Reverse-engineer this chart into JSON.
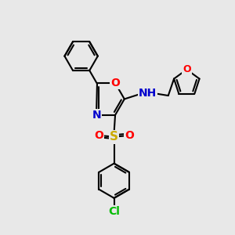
{
  "bg_color": "#e8e8e8",
  "bond_color": "#000000",
  "bond_width": 1.5,
  "atom_colors": {
    "N": "#0000cd",
    "O": "#ff0000",
    "S": "#ccaa00",
    "Cl": "#00bb00",
    "H": "#5f9ea0"
  },
  "font_size": 10,
  "fig_bg": "#e8e8e8"
}
